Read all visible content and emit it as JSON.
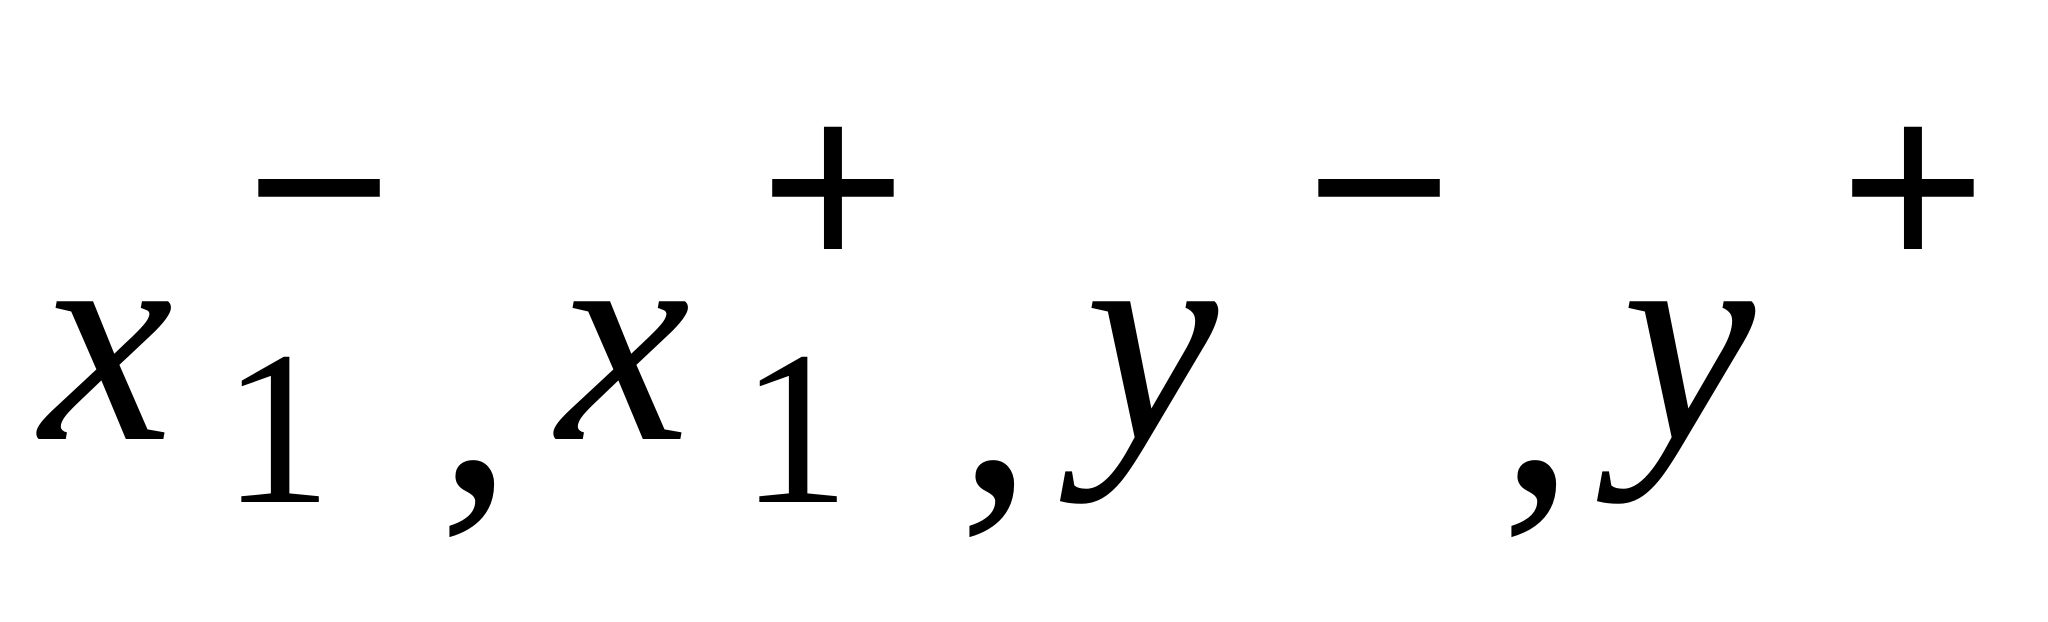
{
  "expression": {
    "terms": [
      {
        "base": "x",
        "subscript": "1",
        "superscript": "−"
      },
      {
        "base": "x",
        "subscript": "1",
        "superscript": "+"
      },
      {
        "base": "y",
        "subscript": "",
        "superscript": "−"
      },
      {
        "base": "y",
        "subscript": "",
        "superscript": "+"
      }
    ],
    "separator": ","
  }
}
